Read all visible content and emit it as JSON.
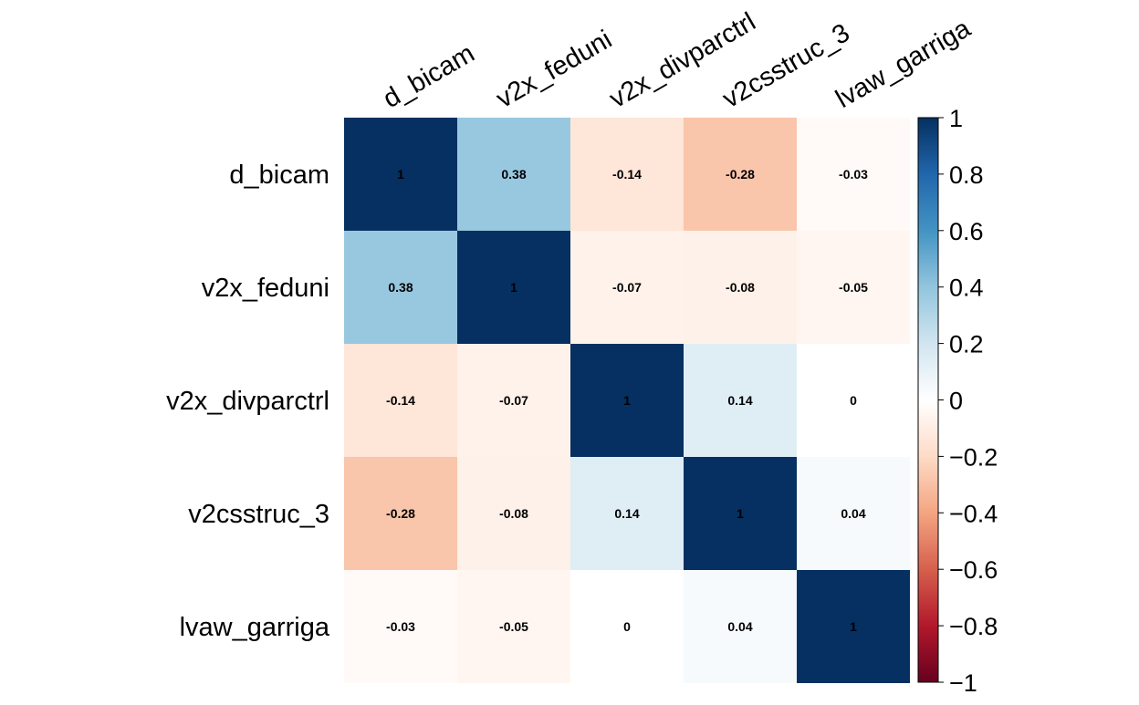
{
  "chart_data": {
    "type": "heatmap",
    "variables": [
      "d_bicam",
      "v2x_feduni",
      "v2x_divparctrl",
      "v2csstruc_3",
      "lvaw_garriga"
    ],
    "matrix": [
      [
        1,
        0.38,
        -0.14,
        -0.28,
        -0.03
      ],
      [
        0.38,
        1,
        -0.07,
        -0.08,
        -0.05
      ],
      [
        -0.14,
        -0.07,
        1,
        0.14,
        0
      ],
      [
        -0.28,
        -0.08,
        0.14,
        1,
        0.04
      ],
      [
        -0.03,
        -0.05,
        0,
        0.04,
        1
      ]
    ],
    "cell_labels": [
      [
        "1",
        "0.38",
        "-0.14",
        "-0.28",
        "-0.03"
      ],
      [
        "0.38",
        "1",
        "-0.07",
        "-0.08",
        "-0.05"
      ],
      [
        "-0.14",
        "-0.07",
        "1",
        "0.14",
        "0"
      ],
      [
        "-0.28",
        "-0.08",
        "0.14",
        "1",
        "0.04"
      ],
      [
        "-0.03",
        "-0.05",
        "0",
        "0.04",
        "1"
      ]
    ],
    "colorbar": {
      "range": [
        -1,
        1
      ],
      "ticks": [
        1,
        0.8,
        0.6,
        0.4,
        0.2,
        0,
        -0.2,
        -0.4,
        -0.6,
        -0.8,
        -1
      ],
      "tick_labels": [
        "1",
        "0.8",
        "0.6",
        "0.4",
        "0.2",
        "0",
        "−0.2",
        "−0.4",
        "−0.6",
        "−0.8",
        "−1"
      ],
      "colors": [
        "#67001F",
        "#B2182B",
        "#D6604D",
        "#F4A582",
        "#FDDBC7",
        "#FFFFFF",
        "#D1E5F0",
        "#92C5DE",
        "#4393C3",
        "#2166AC",
        "#053061"
      ],
      "placement": "right"
    },
    "text_color": "#000000"
  }
}
